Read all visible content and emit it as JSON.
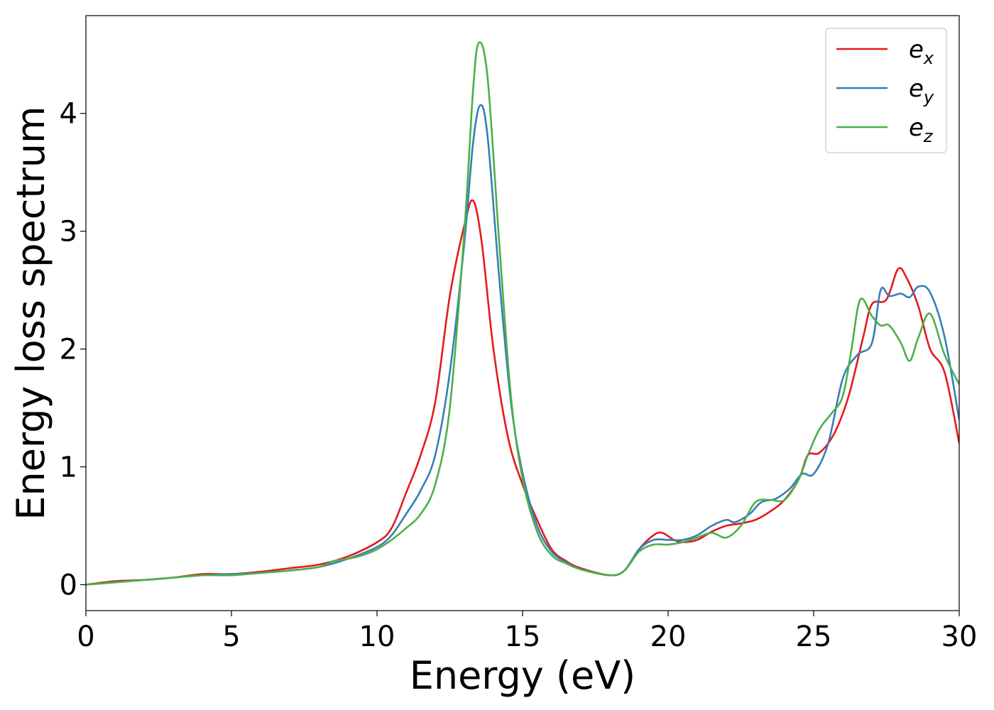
{
  "chart_data": {
    "type": "line",
    "title": "",
    "xlabel": "Energy (eV)",
    "ylabel": "Energy loss spectrum",
    "xlim": [
      0,
      30
    ],
    "ylim": [
      -0.22,
      4.83
    ],
    "xticks": [
      0,
      5,
      10,
      15,
      20,
      25,
      30
    ],
    "yticks": [
      0,
      1,
      2,
      3,
      4
    ],
    "grid": false,
    "legend_position": "top-right",
    "series": [
      {
        "name": "e_x",
        "label_main": "e",
        "label_sub": "x",
        "color": "#e41a1c",
        "x": [
          0,
          1,
          2,
          3,
          4,
          5,
          6,
          7,
          8,
          9,
          10,
          10.5,
          11,
          11.5,
          12,
          12.5,
          13,
          13.3,
          13.6,
          14,
          14.5,
          15,
          15.5,
          16,
          16.5,
          17,
          18,
          18.5,
          19,
          19.5,
          19.8,
          20.2,
          20.5,
          21,
          21.5,
          22,
          22.5,
          23,
          23.5,
          24,
          24.5,
          24.8,
          25.2,
          25.7,
          26.2,
          26.7,
          27,
          27.5,
          27.9,
          28.2,
          28.6,
          29,
          29.5,
          30
        ],
        "y": [
          0,
          0.03,
          0.04,
          0.06,
          0.09,
          0.09,
          0.11,
          0.14,
          0.17,
          0.24,
          0.36,
          0.48,
          0.78,
          1.1,
          1.55,
          2.45,
          3.05,
          3.26,
          2.9,
          2.0,
          1.25,
          0.85,
          0.55,
          0.3,
          0.2,
          0.14,
          0.08,
          0.12,
          0.3,
          0.42,
          0.44,
          0.38,
          0.36,
          0.38,
          0.45,
          0.5,
          0.52,
          0.55,
          0.62,
          0.72,
          0.9,
          1.1,
          1.12,
          1.28,
          1.6,
          2.1,
          2.38,
          2.42,
          2.68,
          2.6,
          2.36,
          2.0,
          1.8,
          1.2
        ]
      },
      {
        "name": "e_y",
        "label_main": "e",
        "label_sub": "y",
        "color": "#377eb8",
        "x": [
          0,
          1,
          2,
          3,
          4,
          5,
          6,
          7,
          8,
          9,
          10,
          10.5,
          11,
          11.5,
          12,
          12.5,
          13,
          13.3,
          13.55,
          13.8,
          14.2,
          14.6,
          15,
          15.5,
          16,
          16.5,
          17,
          18,
          18.5,
          19,
          19.5,
          20,
          20.5,
          21,
          21.5,
          22,
          22.3,
          22.8,
          23.2,
          23.7,
          24.2,
          24.6,
          25,
          25.5,
          26,
          26.5,
          27,
          27.3,
          27.6,
          28,
          28.3,
          28.6,
          29,
          29.5,
          30
        ],
        "y": [
          0,
          0.02,
          0.04,
          0.06,
          0.08,
          0.09,
          0.1,
          0.12,
          0.15,
          0.22,
          0.32,
          0.42,
          0.6,
          0.8,
          1.1,
          1.8,
          2.9,
          3.75,
          4.07,
          3.8,
          2.6,
          1.55,
          0.95,
          0.5,
          0.28,
          0.19,
          0.13,
          0.08,
          0.12,
          0.3,
          0.38,
          0.38,
          0.38,
          0.42,
          0.5,
          0.55,
          0.53,
          0.6,
          0.7,
          0.73,
          0.82,
          0.94,
          0.94,
          1.2,
          1.75,
          1.95,
          2.05,
          2.5,
          2.45,
          2.47,
          2.44,
          2.53,
          2.48,
          2.1,
          1.4
        ]
      },
      {
        "name": "e_z",
        "label_main": "e",
        "label_sub": "z",
        "color": "#4daf4a",
        "x": [
          0,
          1,
          2,
          3,
          4,
          5,
          6,
          7,
          8,
          8.5,
          9,
          9.5,
          10,
          10.5,
          11,
          11.5,
          12,
          12.5,
          13,
          13.3,
          13.5,
          13.8,
          14.2,
          14.6,
          15,
          15.5,
          16,
          16.5,
          17,
          18,
          18.5,
          19,
          19.5,
          20,
          20.5,
          21,
          21.5,
          22,
          22.5,
          23,
          23.5,
          24,
          24.5,
          24.8,
          25.2,
          25.6,
          26,
          26.3,
          26.6,
          27,
          27.3,
          27.6,
          28,
          28.3,
          28.6,
          29,
          29.5,
          30
        ],
        "y": [
          0,
          0.02,
          0.04,
          0.06,
          0.08,
          0.08,
          0.1,
          0.12,
          0.15,
          0.2,
          0.22,
          0.25,
          0.3,
          0.38,
          0.48,
          0.6,
          0.85,
          1.5,
          3.0,
          4.2,
          4.6,
          4.3,
          2.9,
          1.6,
          0.9,
          0.45,
          0.25,
          0.18,
          0.13,
          0.08,
          0.12,
          0.28,
          0.34,
          0.34,
          0.36,
          0.4,
          0.44,
          0.4,
          0.5,
          0.7,
          0.72,
          0.72,
          0.9,
          1.1,
          1.32,
          1.45,
          1.6,
          2.0,
          2.42,
          2.28,
          2.2,
          2.2,
          2.05,
          1.9,
          2.1,
          2.3,
          1.95,
          1.7
        ]
      }
    ]
  }
}
